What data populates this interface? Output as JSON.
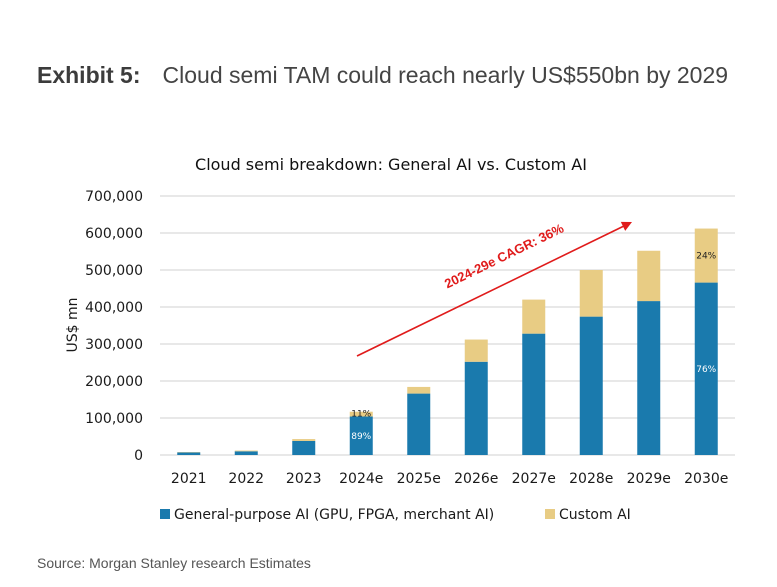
{
  "exhibit": {
    "label": "Exhibit 5:",
    "title": "Cloud semi TAM could reach nearly US$550bn by 2029"
  },
  "source": "Source: Morgan Stanley research Estimates",
  "chart_data": {
    "type": "bar",
    "stacked": true,
    "title": "Cloud semi breakdown: General AI vs. Custom AI",
    "xlabel": "",
    "ylabel": "US$ mn",
    "ylim": [
      0,
      700000
    ],
    "yticks": [
      0,
      100000,
      200000,
      300000,
      400000,
      500000,
      600000,
      700000
    ],
    "ytick_labels": [
      "0",
      "100,000",
      "200,000",
      "300,000",
      "400,000",
      "500,000",
      "600,000",
      "700,000"
    ],
    "grid": true,
    "categories": [
      "2021",
      "2022",
      "2023",
      "2024e",
      "2025e",
      "2026e",
      "2027e",
      "2028e",
      "2029e",
      "2030e"
    ],
    "series": [
      {
        "name": "General-purpose AI (GPU, FPGA, merchant AI)",
        "color": "#1a7aad",
        "values": [
          7000,
          10000,
          38000,
          104000,
          166000,
          252000,
          328000,
          374000,
          416000,
          466000
        ]
      },
      {
        "name": "Custom AI",
        "color": "#e8cc84",
        "values": [
          1000,
          2000,
          5000,
          13000,
          18000,
          60000,
          92000,
          126000,
          136000,
          146000
        ]
      }
    ],
    "data_labels": [
      {
        "category": "2024e",
        "series": "Custom AI",
        "text": "11%"
      },
      {
        "category": "2024e",
        "series": "General-purpose AI (GPU, FPGA, merchant AI)",
        "text": "89%"
      },
      {
        "category": "2030e",
        "series": "Custom AI",
        "text": "24%"
      },
      {
        "category": "2030e",
        "series": "General-purpose AI (GPU, FPGA, merchant AI)",
        "text": "76%"
      }
    ],
    "annotation": {
      "text": "2024-29e CAGR: 36%",
      "color": "#e01b1b",
      "type": "arrow"
    },
    "legend": {
      "placement": "bottom",
      "entries": [
        "General-purpose AI (GPU, FPGA, merchant AI)",
        "Custom AI"
      ]
    }
  }
}
